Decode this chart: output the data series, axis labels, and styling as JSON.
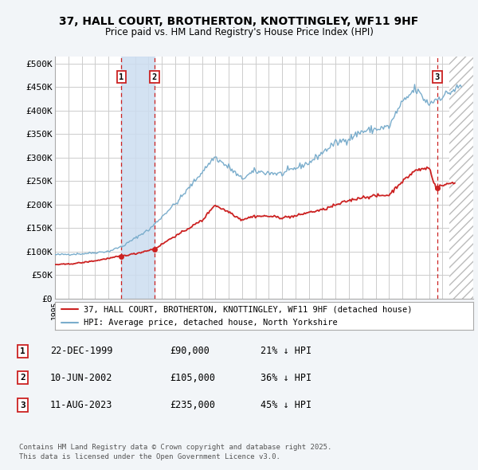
{
  "title_line1": "37, HALL COURT, BROTHERTON, KNOTTINGLEY, WF11 9HF",
  "title_line2": "Price paid vs. HM Land Registry's House Price Index (HPI)",
  "ylabel_ticks": [
    "£0",
    "£50K",
    "£100K",
    "£150K",
    "£200K",
    "£250K",
    "£300K",
    "£350K",
    "£400K",
    "£450K",
    "£500K"
  ],
  "ytick_values": [
    0,
    50000,
    100000,
    150000,
    200000,
    250000,
    300000,
    350000,
    400000,
    450000,
    500000
  ],
  "ylim": [
    0,
    515000
  ],
  "xlim_start": 1995.0,
  "xlim_end": 2026.3,
  "hpi_color": "#7aadcc",
  "price_color": "#cc2222",
  "sale_dates": [
    1999.97,
    2002.44,
    2023.61
  ],
  "sale_prices": [
    90000,
    105000,
    235000
  ],
  "sale_labels": [
    "1",
    "2",
    "3"
  ],
  "shade_pairs": [
    [
      1999.97,
      2002.44
    ]
  ],
  "shade_color": "#ccddf0",
  "vline_color": "#cc2222",
  "legend_label_red": "37, HALL COURT, BROTHERTON, KNOTTINGLEY, WF11 9HF (detached house)",
  "legend_label_blue": "HPI: Average price, detached house, North Yorkshire",
  "table_rows": [
    [
      "1",
      "22-DEC-1999",
      "£90,000",
      "21% ↓ HPI"
    ],
    [
      "2",
      "10-JUN-2002",
      "£105,000",
      "36% ↓ HPI"
    ],
    [
      "3",
      "11-AUG-2023",
      "£235,000",
      "45% ↓ HPI"
    ]
  ],
  "footnote": "Contains HM Land Registry data © Crown copyright and database right 2025.\nThis data is licensed under the Open Government Licence v3.0.",
  "background_color": "#f2f5f8",
  "plot_bg_color": "#ffffff",
  "grid_color": "#cccccc",
  "hatch_start": 2024.5,
  "x_ticks_start": 1995,
  "x_ticks_end": 2027
}
